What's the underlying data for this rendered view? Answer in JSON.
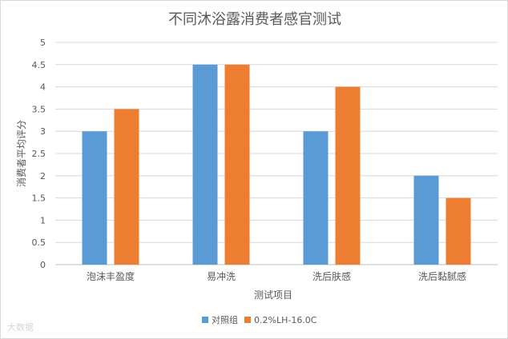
{
  "chart_data": {
    "type": "bar",
    "title": "不同沐浴露消费者感官测试",
    "xlabel": "测试项目",
    "ylabel": "消费者平均评分",
    "categories": [
      "泡沫丰盈度",
      "易冲洗",
      "洗后肤感",
      "洗后黏腻感"
    ],
    "ylim": [
      0,
      5
    ],
    "yticks": [
      "0",
      "0.5",
      "1",
      "1.5",
      "2",
      "2.5",
      "3",
      "3.5",
      "4",
      "4.5",
      "5"
    ],
    "grid": true,
    "legend_position": "bottom",
    "series": [
      {
        "name": "对照组",
        "values": [
          3,
          4.5,
          3,
          2
        ],
        "color": "#5b9bd5"
      },
      {
        "name": "0.2%LH-16.0C",
        "values": [
          3.5,
          4.5,
          4,
          1.5
        ],
        "color": "#ed7d31"
      }
    ]
  },
  "watermark": "大数据"
}
